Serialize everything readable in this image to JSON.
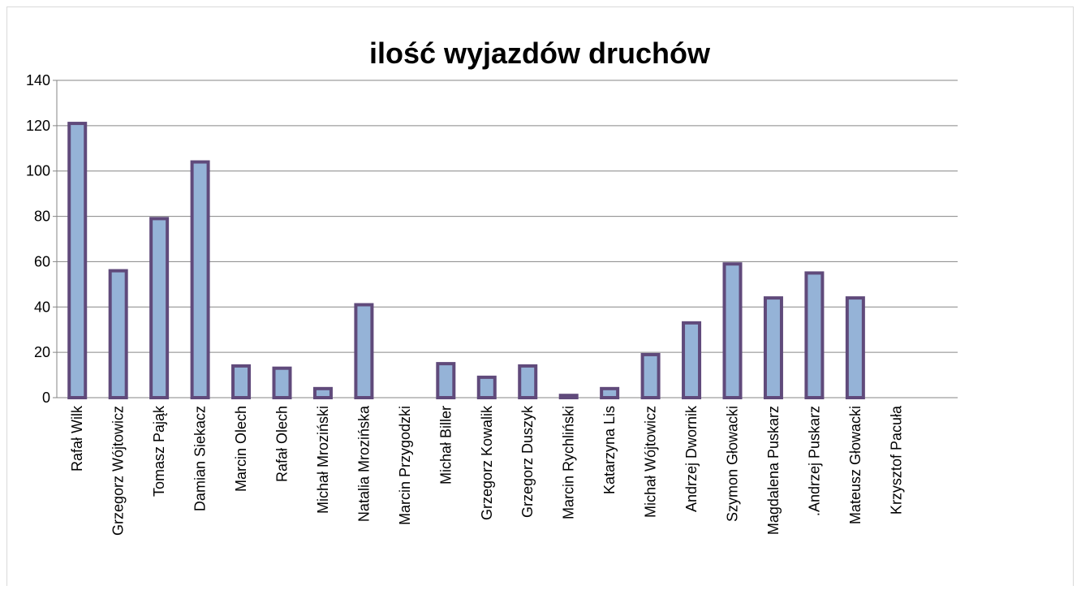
{
  "chart_data": {
    "type": "bar",
    "title": "ilość wyjazdów druchów",
    "categories": [
      "Rafał Wilk",
      "Grzegorz Wójtowicz",
      "Tomasz Pająk",
      "Damian Siekacz",
      "Marcin Olech",
      "Rafał Olech",
      "Michał Mroziński",
      "Natalia Mrozińska",
      "Marcin Przygodzki",
      "Michał Biller",
      "Grzegorz  Kowalik",
      "Grzegorz Duszyk",
      "Marcin Rychliński",
      "Katarzyna Lis",
      "Michał Wójtowicz",
      "Andrzej Dwornik",
      "Szymon Głowacki",
      "Magdalena Puskarz",
      ".Andrzej Puskarz",
      "Mateusz Głowacki",
      "Krzysztof Pacuła",
      null
    ],
    "values": [
      121,
      56,
      79,
      104,
      14,
      13,
      4,
      41,
      0,
      15,
      9,
      14,
      1,
      4,
      19,
      33,
      59,
      44,
      55,
      44,
      0,
      null
    ],
    "color": "#95b3d7",
    "edge_color": "#604a7b",
    "ylim": [
      0,
      140
    ],
    "yticks": [
      0,
      20,
      40,
      60,
      80,
      100,
      120,
      140
    ],
    "grid": true
  }
}
